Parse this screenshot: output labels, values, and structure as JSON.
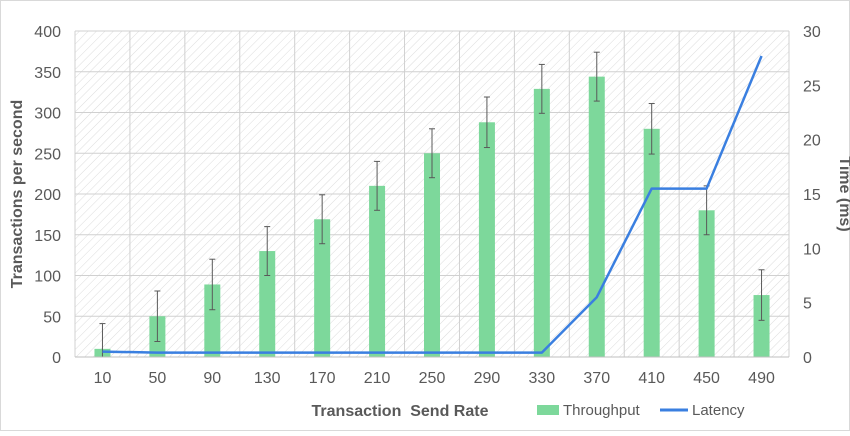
{
  "chart_data": {
    "type": "bar",
    "categories": [
      "10",
      "50",
      "90",
      "130",
      "170",
      "210",
      "250",
      "290",
      "330",
      "370",
      "410",
      "450",
      "490"
    ],
    "xlabel": "Transaction  Send Rate",
    "ylabel": "Transactions per second",
    "y2label": "Time (ms)",
    "ylim": [
      0,
      400
    ],
    "y2lim": [
      0,
      30
    ],
    "yticks": [
      "0",
      "50",
      "100",
      "150",
      "200",
      "250",
      "300",
      "350",
      "400"
    ],
    "y2ticks": [
      "0",
      "5",
      "10",
      "15",
      "20",
      "25",
      "30"
    ],
    "grid": true,
    "legend_position": "bottom-right",
    "series": [
      {
        "name": "Throughput",
        "type": "bar",
        "axis": "left",
        "color": "#7dd89b",
        "values": [
          10,
          50,
          89,
          130,
          169,
          210,
          250,
          288,
          329,
          344,
          280,
          180,
          76
        ],
        "error": [
          31,
          31,
          31,
          30,
          30,
          30,
          30,
          31,
          30,
          30,
          31,
          30,
          31
        ]
      },
      {
        "name": "Latency",
        "type": "line",
        "axis": "right",
        "color": "#3a7fe0",
        "values": [
          0.5,
          0.4,
          0.4,
          0.4,
          0.4,
          0.4,
          0.4,
          0.4,
          0.4,
          5.5,
          15.5,
          15.5,
          27.7
        ]
      }
    ]
  }
}
